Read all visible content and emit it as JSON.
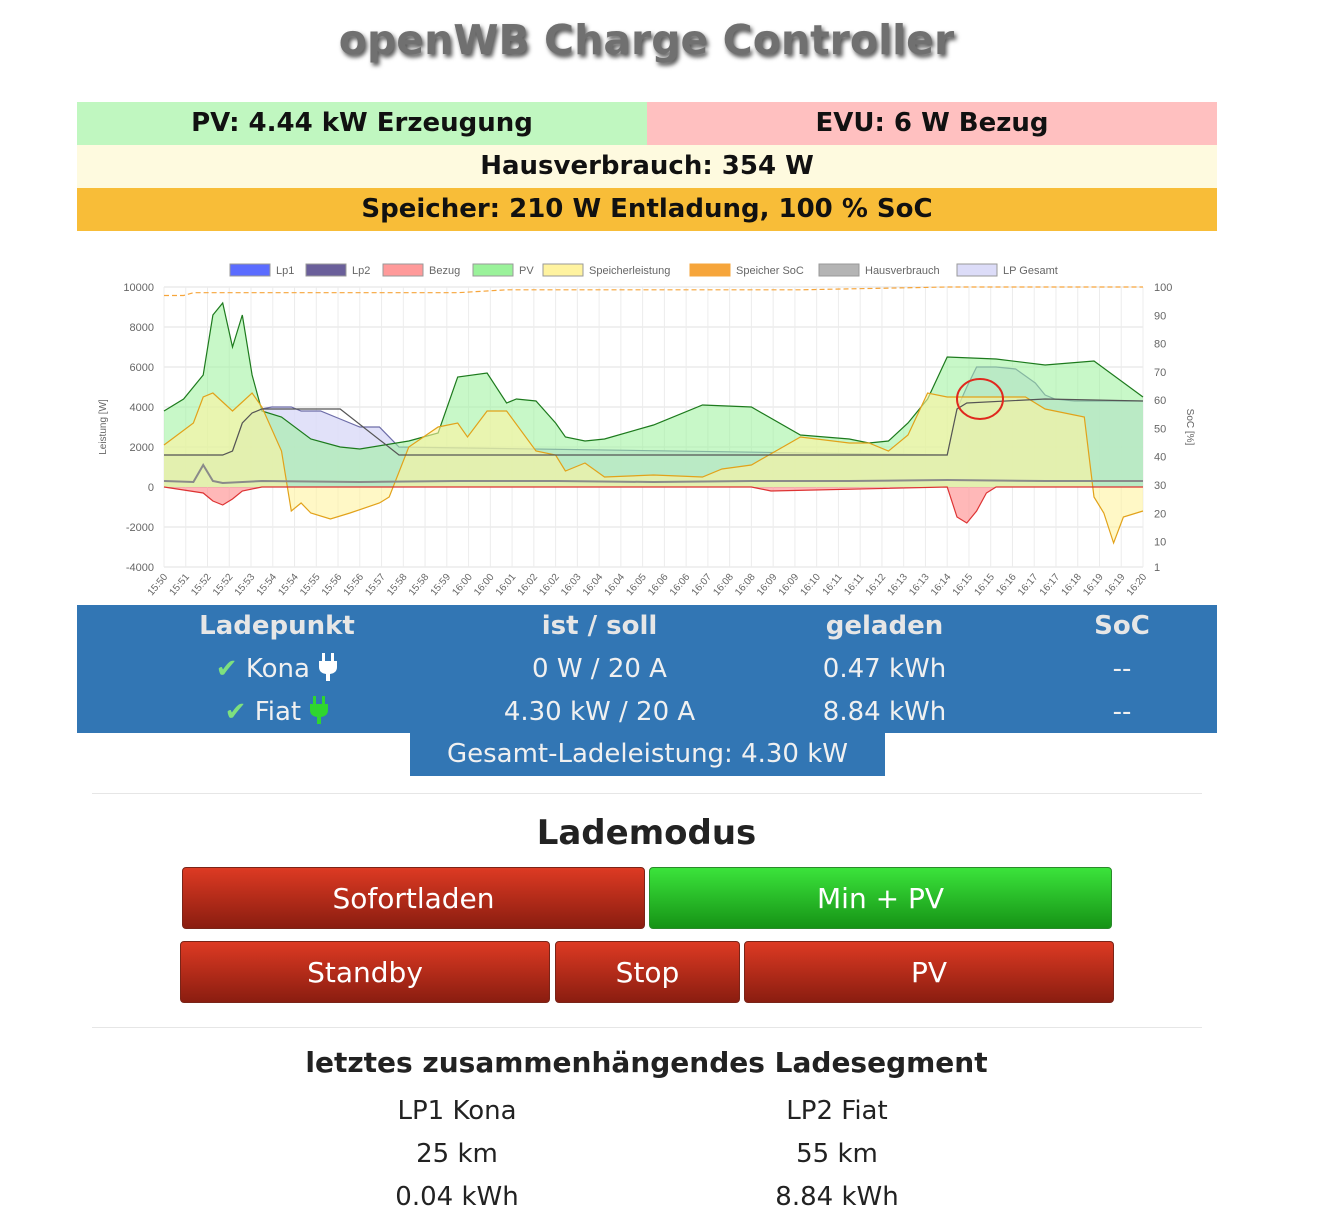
{
  "title": "openWB Charge Controller",
  "status": {
    "pv": "PV: 4.44 kW Erzeugung",
    "evu": "EVU: 6 W Bezug",
    "haus": "Hausverbrauch: 354 W",
    "speicher": "Speicher: 210 W Entladung, 100 % SoC"
  },
  "chart_data": {
    "type": "area",
    "legend": [
      {
        "name": "Lp1",
        "color": "#5b6cff"
      },
      {
        "name": "Lp2",
        "color": "#6a5f9a"
      },
      {
        "name": "Bezug",
        "color": "#ff9a9a"
      },
      {
        "name": "PV",
        "color": "#9af29a"
      },
      {
        "name": "Speicherleistung",
        "color": "#fff3a0"
      },
      {
        "name": "Speicher SoC",
        "color": "#f6a53b"
      },
      {
        "name": "Hausverbrauch",
        "color": "#b4b4b4"
      },
      {
        "name": "LP Gesamt",
        "color": "#dcdcf8"
      }
    ],
    "legend_position": "top",
    "ylabel": "Leistung [W]",
    "y2label": "SoC [%]",
    "ylim": [
      -4000,
      10000
    ],
    "y_ticks": [
      "10000",
      "8000",
      "6000",
      "4000",
      "2000",
      "0",
      "-2000",
      "-4000"
    ],
    "y2lim": [
      1,
      100
    ],
    "y2_ticks": [
      "100",
      "90",
      "80",
      "70",
      "60",
      "50",
      "40",
      "30",
      "20",
      "10",
      "1"
    ],
    "x_ticks": [
      "15:50",
      "15:51",
      "15:52",
      "15:52",
      "15:53",
      "15:54",
      "15:54",
      "15:55",
      "15:56",
      "15:56",
      "15:57",
      "15:58",
      "15:58",
      "15:59",
      "16:00",
      "16:00",
      "16:01",
      "16:02",
      "16:02",
      "16:03",
      "16:04",
      "16:04",
      "16:05",
      "16:06",
      "16:06",
      "16:07",
      "16:08",
      "16:08",
      "16:09",
      "16:09",
      "16:10",
      "16:11",
      "16:11",
      "16:12",
      "16:13",
      "16:13",
      "16:14",
      "16:15",
      "16:15",
      "16:16",
      "16:17",
      "16:17",
      "16:18",
      "16:19",
      "16:19",
      "16:20"
    ],
    "grid": true,
    "series": [
      {
        "name": "PV",
        "x": [
          0,
          2,
          4,
          5,
          6,
          7,
          8,
          9,
          10,
          12,
          15,
          18,
          20,
          25,
          28,
          30,
          33,
          35,
          36,
          38,
          40,
          41,
          43,
          45,
          50,
          55,
          60,
          65,
          70,
          72,
          74,
          76,
          78,
          80,
          85,
          90,
          95,
          100
        ],
        "values": [
          3800,
          4400,
          5600,
          8600,
          9200,
          7000,
          8600,
          5600,
          3800,
          3500,
          2400,
          2000,
          1900,
          2300,
          2700,
          5500,
          5700,
          4200,
          4400,
          4300,
          3200,
          2500,
          2300,
          2400,
          3100,
          4100,
          4000,
          2600,
          2400,
          2200,
          2300,
          3200,
          4400,
          6500,
          6400,
          6100,
          6300,
          4500
        ]
      },
      {
        "name": "Speicherleistung",
        "x": [
          0,
          3,
          4,
          5,
          7,
          9,
          10,
          12,
          13,
          14,
          15,
          17,
          19,
          22,
          23,
          25,
          28,
          30,
          31,
          33,
          35,
          38,
          40,
          41,
          43,
          45,
          50,
          55,
          57,
          60,
          65,
          70,
          72,
          74,
          76,
          78,
          80,
          85,
          88,
          90,
          94,
          95,
          96,
          97,
          98,
          100
        ],
        "values": [
          2100,
          3200,
          4500,
          4700,
          3800,
          4700,
          4000,
          1800,
          -1200,
          -800,
          -1300,
          -1600,
          -1300,
          -800,
          -500,
          2000,
          3000,
          3200,
          2500,
          3800,
          3800,
          1800,
          1600,
          800,
          1200,
          500,
          600,
          500,
          900,
          1100,
          2500,
          2200,
          2200,
          1800,
          2600,
          4700,
          4500,
          4500,
          4500,
          3900,
          3500,
          -500,
          -1300,
          -2800,
          -1500,
          -1200
        ]
      },
      {
        "name": "Bezug",
        "x": [
          0,
          4,
          5,
          6,
          7,
          8,
          10,
          60,
          62,
          80,
          81,
          82,
          83,
          84,
          85,
          100
        ],
        "values": [
          0,
          -300,
          -700,
          -900,
          -600,
          -200,
          0,
          0,
          -200,
          0,
          -1500,
          -1800,
          -1200,
          -300,
          0,
          0
        ]
      },
      {
        "name": "LP Gesamt",
        "x": [
          0,
          5,
          6,
          7,
          8,
          9,
          10,
          11,
          12,
          13,
          14,
          16,
          18,
          20,
          22,
          24,
          80,
          81,
          82,
          83,
          85,
          87,
          89,
          90,
          91,
          93,
          100
        ],
        "values": [
          1600,
          1600,
          1600,
          1800,
          3200,
          3700,
          3900,
          4000,
          4000,
          4000,
          3800,
          3800,
          3400,
          3000,
          3000,
          2000,
          1600,
          3900,
          5000,
          6000,
          6000,
          5900,
          5200,
          4600,
          4400,
          4300,
          4300
        ]
      },
      {
        "name": "Lp2",
        "x": [
          0,
          5,
          6,
          7,
          8,
          9,
          10,
          12,
          18,
          24,
          80,
          81,
          82,
          90,
          100
        ],
        "values": [
          1600,
          1600,
          1600,
          1800,
          3200,
          3700,
          3900,
          3900,
          3900,
          1600,
          1600,
          3900,
          4200,
          4400,
          4300
        ]
      },
      {
        "name": "Hausverbrauch",
        "x": [
          0,
          3,
          4,
          5,
          6,
          10,
          20,
          30,
          40,
          50,
          60,
          70,
          80,
          90,
          100
        ],
        "values": [
          300,
          250,
          1100,
          300,
          200,
          300,
          250,
          300,
          300,
          250,
          300,
          300,
          350,
          300,
          300
        ]
      },
      {
        "name": "Speicher SoC",
        "x": [
          0,
          2,
          3,
          5,
          30,
          35,
          65,
          80,
          100
        ],
        "values": [
          97,
          97,
          98,
          98,
          98,
          99,
          99,
          100,
          100
        ]
      }
    ]
  },
  "lp_table": {
    "headers": [
      "Ladepunkt",
      "ist / soll",
      "geladen",
      "SoC"
    ],
    "rows": [
      {
        "name": "Kona",
        "check": "✔",
        "plug_color": "#ffffff",
        "power": "0 W / 20 A",
        "energy": "0.47 kWh",
        "soc": "--"
      },
      {
        "name": "Fiat",
        "check": "✔",
        "plug_color": "#2fd62f",
        "power": "4.30 kW / 20 A",
        "energy": "8.84 kWh",
        "soc": "--"
      }
    ],
    "gesamt": "Gesamt-Ladeleistung: 4.30 kW"
  },
  "lademodus": {
    "title": "Lademodus",
    "buttons": [
      "Sofortladen",
      "Min + PV",
      "Standby",
      "Stop",
      "PV"
    ],
    "active": "Min + PV"
  },
  "segment": {
    "title": "letztes zusammenhängendes Ladesegment",
    "lp1": {
      "name": "LP1 Kona",
      "km": "25 km",
      "kwh": "0.04 kWh"
    },
    "lp2": {
      "name": "LP2 Fiat",
      "km": "55 km",
      "kwh": "8.84 kWh"
    }
  }
}
